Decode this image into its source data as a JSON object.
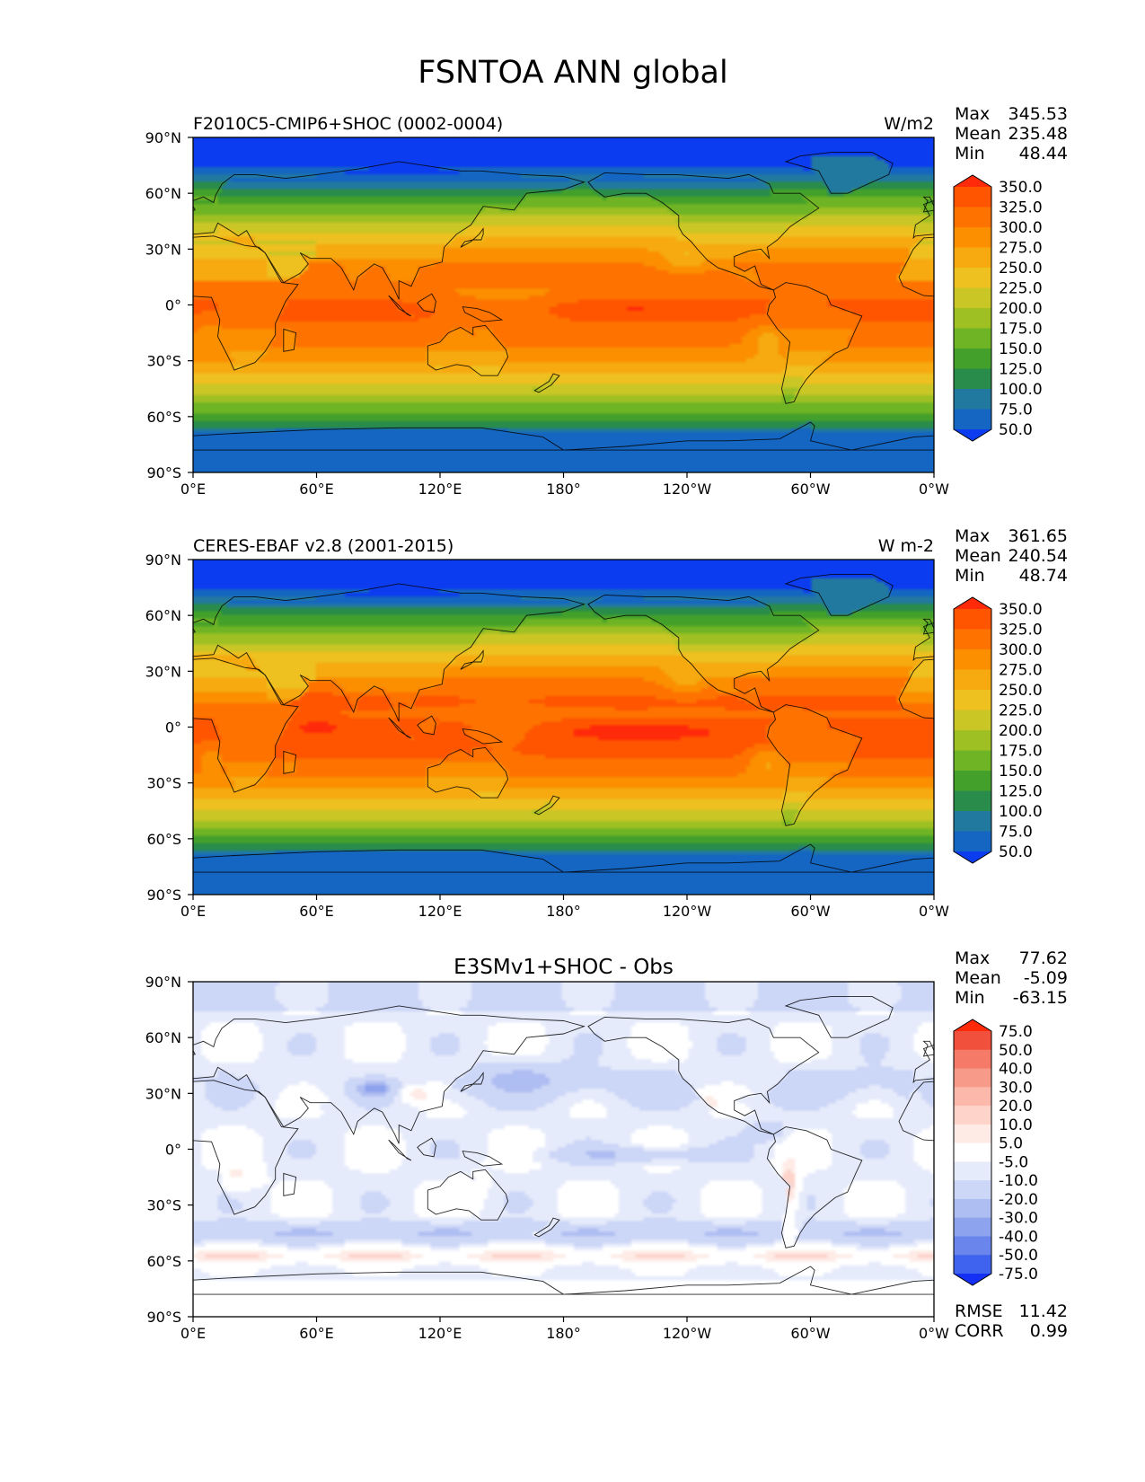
{
  "figure": {
    "title": "FSNTOA ANN global"
  },
  "chart_data": [
    {
      "type": "heatmap",
      "left_title": "F2010C5-CMIP6+SHOC (0002-0004)",
      "center_title": "",
      "units": "W/m2",
      "stats": {
        "max_label": "Max",
        "max": "345.53",
        "mean_label": "Mean",
        "mean": "235.48",
        "min_label": "Min",
        "min": "48.44"
      },
      "footer": null,
      "xticks": [
        "0°E",
        "60°E",
        "120°E",
        "180°",
        "120°W",
        "60°W",
        "0°W"
      ],
      "yticks": [
        "90°N",
        "60°N",
        "30°N",
        "0°",
        "30°S",
        "60°S",
        "90°S"
      ],
      "xlim": [
        0,
        360
      ],
      "ylim": [
        -90,
        90
      ],
      "colorbar": {
        "levels": [
          "350.0",
          "325.0",
          "300.0",
          "275.0",
          "250.0",
          "225.0",
          "200.0",
          "175.0",
          "150.0",
          "125.0",
          "100.0",
          "75.0",
          "50.0"
        ],
        "colors": [
          "#ff2a0a",
          "#ff5500",
          "#fe7300",
          "#fb8f00",
          "#f6aa10",
          "#eec020",
          "#c9c626",
          "#9ec023",
          "#6fb425",
          "#43a02a",
          "#2a8c4a",
          "#2279a0",
          "#1566c2",
          "#0c3cf0"
        ]
      },
      "field": {
        "model": "absorbed",
        "mean": 235.48,
        "max": 345.53,
        "min": 48.44
      }
    },
    {
      "type": "heatmap",
      "left_title": "CERES-EBAF v2.8 (2001-2015)",
      "center_title": "",
      "units": "W m-2",
      "stats": {
        "max_label": "Max",
        "max": "361.65",
        "mean_label": "Mean",
        "mean": "240.54",
        "min_label": "Min",
        "min": "48.74"
      },
      "footer": null,
      "xticks": [
        "0°E",
        "60°E",
        "120°E",
        "180°",
        "120°W",
        "60°W",
        "0°W"
      ],
      "yticks": [
        "90°N",
        "60°N",
        "30°N",
        "0°",
        "30°S",
        "60°S",
        "90°S"
      ],
      "xlim": [
        0,
        360
      ],
      "ylim": [
        -90,
        90
      ],
      "colorbar": {
        "levels": [
          "350.0",
          "325.0",
          "300.0",
          "275.0",
          "250.0",
          "225.0",
          "200.0",
          "175.0",
          "150.0",
          "125.0",
          "100.0",
          "75.0",
          "50.0"
        ],
        "colors": [
          "#ff2a0a",
          "#ff5500",
          "#fe7300",
          "#fb8f00",
          "#f6aa10",
          "#eec020",
          "#c9c626",
          "#9ec023",
          "#6fb425",
          "#43a02a",
          "#2a8c4a",
          "#2279a0",
          "#1566c2",
          "#0c3cf0"
        ]
      },
      "field": {
        "model": "absorbed",
        "mean": 240.54,
        "max": 361.65,
        "min": 48.74
      }
    },
    {
      "type": "heatmap",
      "left_title": "",
      "center_title": "E3SMv1+SHOC - Obs",
      "units": "",
      "stats": {
        "max_label": "Max",
        "max": "77.62",
        "mean_label": "Mean",
        "mean": "-5.09",
        "min_label": "Min",
        "min": "-63.15"
      },
      "footer": {
        "rmse_label": "RMSE",
        "rmse": "11.42",
        "corr_label": "CORR",
        "corr": "0.99"
      },
      "xticks": [
        "0°E",
        "60°E",
        "120°E",
        "180°",
        "120°W",
        "60°W",
        "0°W"
      ],
      "yticks": [
        "90°N",
        "60°N",
        "30°N",
        "0°",
        "30°S",
        "60°S",
        "90°S"
      ],
      "xlim": [
        0,
        360
      ],
      "ylim": [
        -90,
        90
      ],
      "colorbar": {
        "levels": [
          "75.0",
          "50.0",
          "40.0",
          "30.0",
          "20.0",
          "10.0",
          "5.0",
          "-5.0",
          "-10.0",
          "-20.0",
          "-30.0",
          "-40.0",
          "-50.0",
          "-75.0"
        ],
        "colors": [
          "#ff2a0a",
          "#f0503c",
          "#f57a68",
          "#f89a8a",
          "#fbb8ab",
          "#fdd3ca",
          "#feebe6",
          "#ffffff",
          "#e6ebfb",
          "#ccd6f7",
          "#aebdf2",
          "#8ea3ee",
          "#6a86ec",
          "#3f63ef",
          "#1530f5"
        ]
      },
      "field": {
        "model": "difference",
        "mean": -5.09,
        "max": 77.62,
        "min": -63.15
      }
    }
  ]
}
